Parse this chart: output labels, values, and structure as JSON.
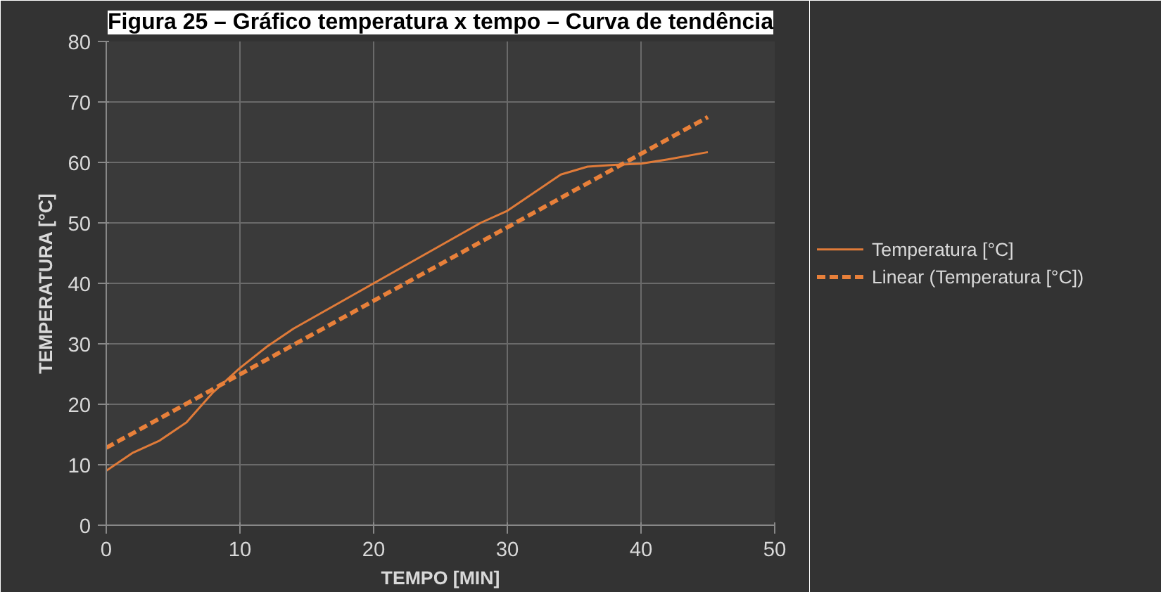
{
  "chart_data": {
    "type": "line",
    "title": "Figura 25 – Gráfico temperatura x tempo – Curva de tendência",
    "xlabel": "TEMPO [MIN]",
    "ylabel": "TEMPERATURA [°C]",
    "x": [
      0,
      2,
      4,
      6,
      8,
      10,
      12,
      14,
      16,
      18,
      20,
      22,
      24,
      26,
      28,
      30,
      32,
      34,
      36,
      38,
      40,
      42,
      45
    ],
    "series": [
      {
        "name": "Temperatura [°C]",
        "color": "#e07b39",
        "values": [
          9,
          12,
          14,
          17,
          22,
          26,
          29.5,
          32.5,
          35,
          37.5,
          40,
          42.5,
          45,
          47.5,
          50,
          52,
          55,
          58,
          59.3,
          59.6,
          59.8,
          60.5,
          61.7
        ],
        "line_style": "solid"
      },
      {
        "name": "Linear (Temperatura [°C])",
        "type": "line",
        "color": "#e8803a",
        "x": [
          0,
          45
        ],
        "values": [
          12.8,
          67.5
        ],
        "line_style": "dashed"
      }
    ],
    "xlim": [
      0,
      50
    ],
    "ylim": [
      0,
      80
    ],
    "xticks": [
      0,
      10,
      20,
      30,
      40,
      50
    ],
    "yticks": [
      0,
      10,
      20,
      30,
      40,
      50,
      60,
      70,
      80
    ],
    "grid": true,
    "legend": "right",
    "marker": "none"
  }
}
